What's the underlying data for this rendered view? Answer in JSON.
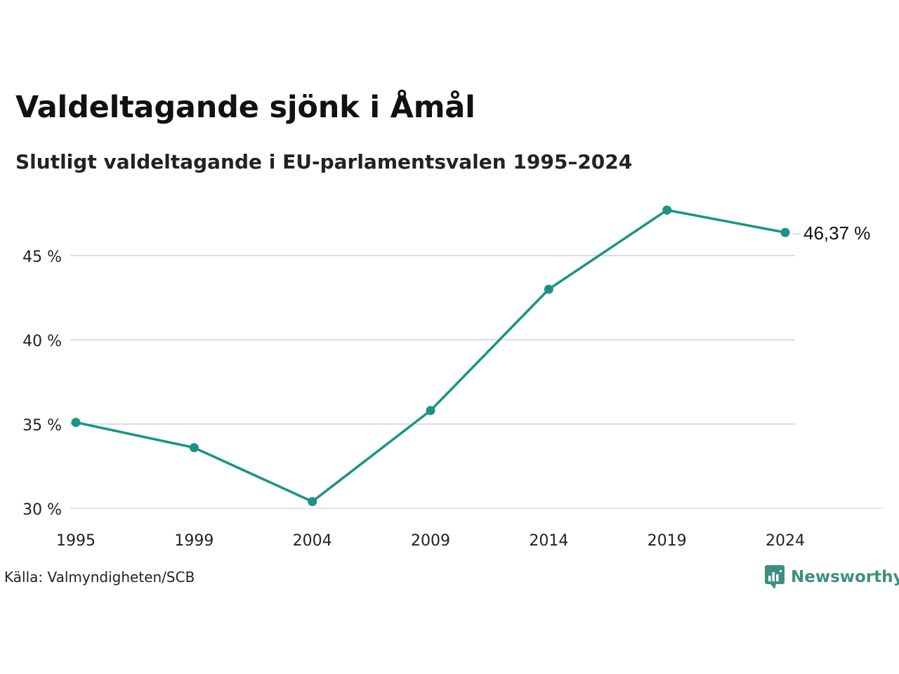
{
  "header": {
    "title": "Valdeltagande sjönk i Åmål",
    "subtitle": "Slutligt valdeltagande i EU-parlamentsvalen 1995–2024"
  },
  "footer": {
    "source": "Källa: Valmyndigheten/SCB",
    "brand": "Newsworthy",
    "brand_icon": "newsworthy-logo-icon"
  },
  "colors": {
    "line": "#1a9484",
    "grid": "#dddddd",
    "brand": "#3d8f80"
  },
  "chart_data": {
    "type": "line",
    "title": "Valdeltagande sjönk i Åmål",
    "subtitle": "Slutligt valdeltagande i EU-parlamentsvalen 1995–2024",
    "x": [
      "1995",
      "1999",
      "2004",
      "2009",
      "2014",
      "2019",
      "2024"
    ],
    "series": [
      {
        "values": [
          35.1,
          33.6,
          30.4,
          35.8,
          43.0,
          47.7,
          46.37
        ]
      }
    ],
    "end_label": "46,37 %",
    "ylim": [
      30,
      48
    ],
    "yticks": [
      30,
      35,
      40,
      45
    ],
    "ytick_labels": [
      "30 %",
      "35 %",
      "40 %",
      "45 %"
    ],
    "grid": true,
    "legend": "none",
    "xlabel": "",
    "ylabel": ""
  }
}
